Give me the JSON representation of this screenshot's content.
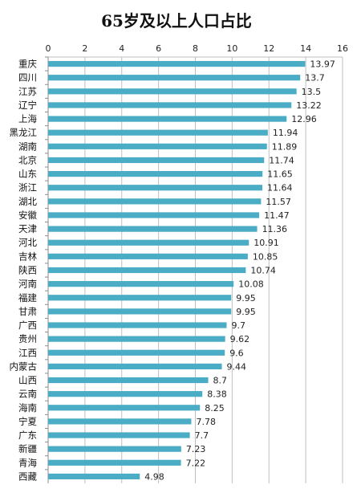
{
  "chart_data": {
    "type": "bar",
    "orientation": "horizontal",
    "title": "65岁及以上人口占比",
    "xlabel": "",
    "ylabel": "",
    "xlim": [
      0,
      16
    ],
    "xticks": [
      0,
      2,
      4,
      6,
      8,
      10,
      12,
      14,
      16
    ],
    "grid": true,
    "legend": "none",
    "bar_color": "#4bacc6",
    "categories": [
      "重庆",
      "四川",
      "江苏",
      "辽宁",
      "上海",
      "黑龙江",
      "湖南",
      "北京",
      "山东",
      "浙江",
      "湖北",
      "安徽",
      "天津",
      "河北",
      "吉林",
      "陕西",
      "河南",
      "福建",
      "甘肃",
      "广西",
      "贵州",
      "江西",
      "内蒙古",
      "山西",
      "云南",
      "海南",
      "宁夏",
      "广东",
      "新疆",
      "青海",
      "西藏"
    ],
    "values": [
      13.97,
      13.7,
      13.5,
      13.22,
      12.96,
      11.94,
      11.89,
      11.74,
      11.65,
      11.64,
      11.57,
      11.47,
      11.36,
      10.91,
      10.85,
      10.74,
      10.08,
      9.95,
      9.95,
      9.7,
      9.62,
      9.6,
      9.44,
      8.7,
      8.38,
      8.25,
      7.78,
      7.7,
      7.23,
      7.22,
      4.98
    ]
  }
}
